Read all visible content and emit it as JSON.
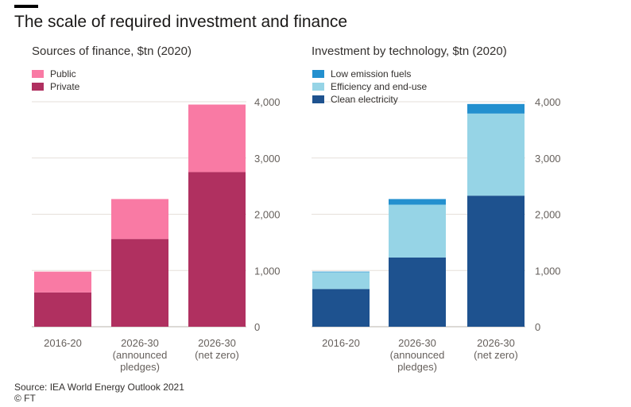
{
  "title": "The scale of required investment and finance",
  "source": "Source: IEA World Energy Outlook 2021",
  "credit": "© FT",
  "chart_data": [
    {
      "type": "bar",
      "stacked": true,
      "title": "Sources of finance, $tn (2020)",
      "categories": [
        [
          "2016-20"
        ],
        [
          "2026-30",
          "(announced",
          "pledges)"
        ],
        [
          "2026-30",
          "(net zero)"
        ]
      ],
      "series": [
        {
          "name": "Private",
          "color": "#b03060",
          "values": [
            610,
            1560,
            2750
          ]
        },
        {
          "name": "Public",
          "color": "#f97aa4",
          "values": [
            370,
            710,
            1200
          ]
        }
      ],
      "ylim": [
        0,
        4000
      ],
      "yticks": [
        0,
        1000,
        2000,
        3000,
        4000
      ],
      "ytick_labels": [
        "0",
        "1,000",
        "2,000",
        "3,000",
        "4,000"
      ],
      "y_axis_side": "right",
      "grid": true,
      "legend": [
        "Public",
        "Private"
      ],
      "legend_placement": "top-left"
    },
    {
      "type": "bar",
      "stacked": true,
      "title": "Investment by technology, $tn (2020)",
      "categories": [
        [
          "2016-20"
        ],
        [
          "2026-30",
          "(announced",
          "pledges)"
        ],
        [
          "2026-30",
          "(net zero)"
        ]
      ],
      "series": [
        {
          "name": "Clean electricity",
          "color": "#1e528f",
          "values": [
            670,
            1230,
            2330
          ]
        },
        {
          "name": "Efficiency and end-use",
          "color": "#96d4e6",
          "values": [
            300,
            940,
            1460
          ]
        },
        {
          "name": "Low emission fuels",
          "color": "#2390cf",
          "values": [
            10,
            100,
            170
          ]
        }
      ],
      "ylim": [
        0,
        4000
      ],
      "yticks": [
        0,
        1000,
        2000,
        3000,
        4000
      ],
      "ytick_labels": [
        "0",
        "1,000",
        "2,000",
        "3,000",
        "4,000"
      ],
      "y_axis_side": "right",
      "grid": true,
      "legend": [
        "Low emission fuels",
        "Efficiency and end-use",
        "Clean electricity"
      ],
      "legend_placement": "top-left"
    }
  ]
}
